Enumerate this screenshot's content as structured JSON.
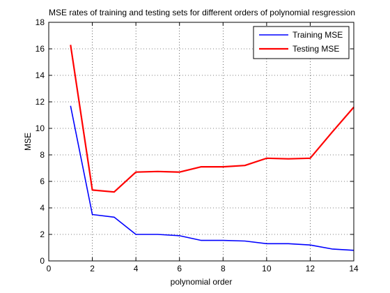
{
  "chart_data": {
    "type": "line",
    "title": "MSE rates of training and testing sets for different orders of polynomial resgression",
    "xlabel": "polynomial order",
    "ylabel": "MSE",
    "xlim": [
      0,
      14
    ],
    "ylim": [
      0,
      18
    ],
    "xticks": [
      0,
      2,
      4,
      6,
      8,
      10,
      12,
      14
    ],
    "yticks": [
      0,
      2,
      4,
      6,
      8,
      10,
      12,
      14,
      16,
      18
    ],
    "grid": "dotted",
    "legend_position": "top-right",
    "series": [
      {
        "name": "Training MSE",
        "color": "#0000ff",
        "x": [
          1,
          2,
          3,
          4,
          5,
          6,
          7,
          8,
          9,
          10,
          11,
          12,
          13,
          14
        ],
        "y": [
          11.7,
          3.5,
          3.3,
          2.0,
          2.0,
          1.9,
          1.55,
          1.55,
          1.5,
          1.3,
          1.3,
          1.2,
          0.9,
          0.8
        ]
      },
      {
        "name": "Testing MSE",
        "color": "#ff0000",
        "x": [
          1,
          2,
          3,
          4,
          5,
          6,
          7,
          8,
          9,
          10,
          11,
          12,
          13,
          14
        ],
        "y": [
          16.3,
          5.35,
          5.2,
          6.7,
          6.75,
          6.7,
          7.1,
          7.1,
          7.2,
          7.75,
          7.7,
          7.75,
          9.7,
          11.6
        ]
      }
    ]
  }
}
